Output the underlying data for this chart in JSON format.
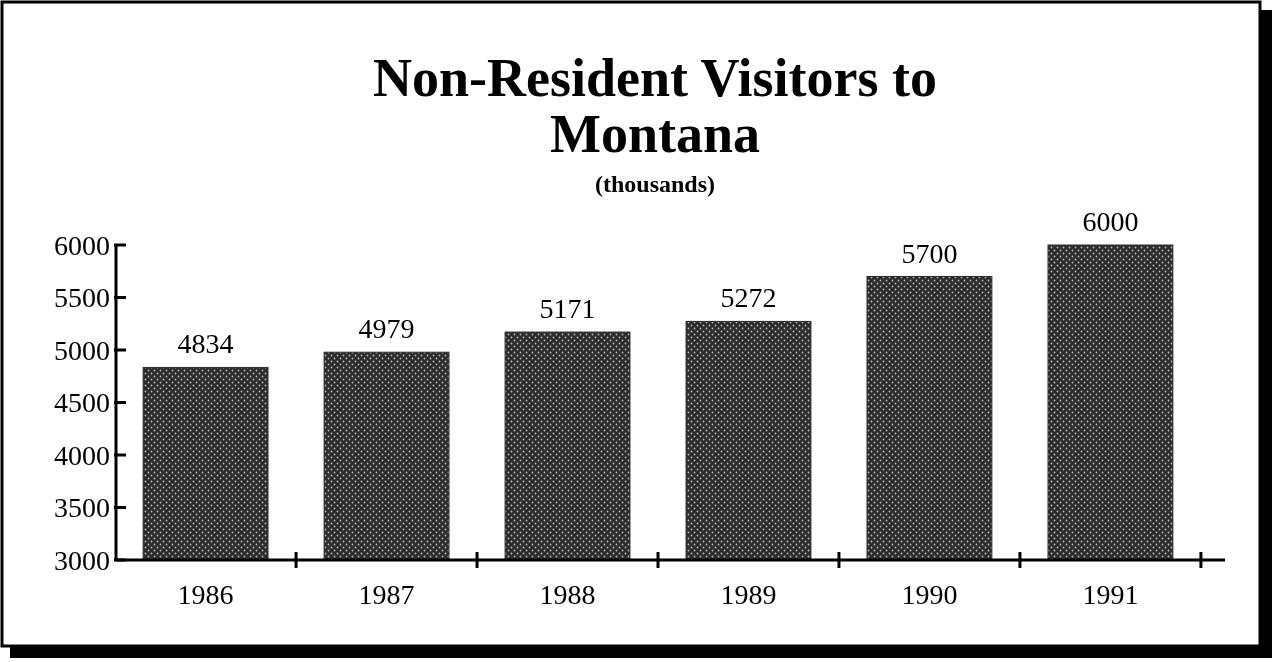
{
  "chart_data": {
    "type": "bar",
    "title": "Non-Resident Visitors to Montana",
    "subtitle": "(thousands)",
    "categories": [
      "1986",
      "1987",
      "1988",
      "1989",
      "1990",
      "1991"
    ],
    "values": [
      4834,
      4979,
      5171,
      5272,
      5700,
      6000
    ],
    "color": "#2b2b2b",
    "ylim": [
      3000,
      6000
    ],
    "yticks": [
      3000,
      3500,
      4000,
      4500,
      5000,
      5500,
      6000
    ],
    "data_labels": true,
    "grid": false
  }
}
